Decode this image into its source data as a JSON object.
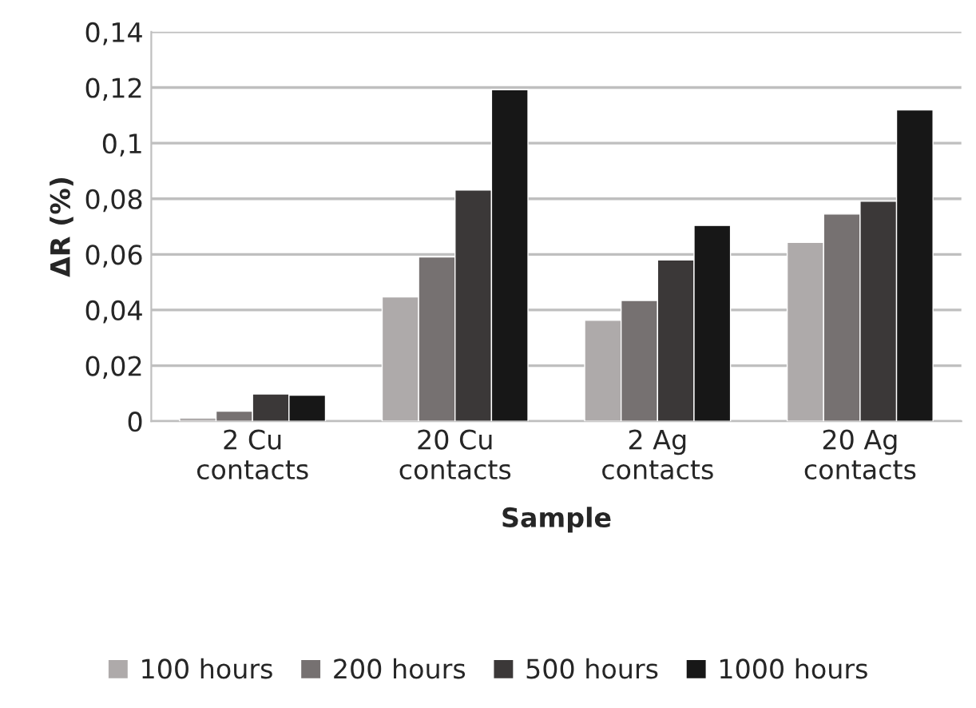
{
  "chart_data": {
    "type": "bar",
    "xlabel": "Sample",
    "ylabel": "ΔR (%)",
    "categories": [
      "2 Cu\ncontacts",
      "20 Cu\ncontacts",
      "2 Ag\ncontacts",
      "20 Ag\ncontacts"
    ],
    "series": [
      {
        "name": "100 hours",
        "color": "#aeaaaa",
        "values": [
          0.0012,
          0.0447,
          0.0363,
          0.0643
        ]
      },
      {
        "name": "200 hours",
        "color": "#767171",
        "values": [
          0.0036,
          0.0591,
          0.0434,
          0.0745
        ]
      },
      {
        "name": "500 hours",
        "color": "#3b3838",
        "values": [
          0.0098,
          0.0831,
          0.058,
          0.0791
        ]
      },
      {
        "name": "1000 hours",
        "color": "#171717",
        "values": [
          0.0094,
          0.1192,
          0.0704,
          0.1119
        ]
      }
    ],
    "ylim": [
      0,
      0.14
    ],
    "yticks": [
      0,
      {
        "value": 0.02,
        "label": "0,02"
      },
      {
        "value": 0.04,
        "label": "0,04"
      },
      {
        "value": 0.06,
        "label": "0,06"
      },
      {
        "value": 0.08,
        "label": "0,08"
      },
      {
        "value": 0.1,
        "label": "0,1"
      },
      {
        "value": 0.12,
        "label": "0,12"
      },
      {
        "value": 0.14,
        "label": "0,14"
      }
    ],
    "grid": "y",
    "legend": "bottom"
  }
}
